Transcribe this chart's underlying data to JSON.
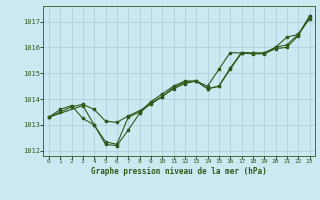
{
  "title": "Graphe pression niveau de la mer (hPa)",
  "bg_color": "#cce8f0",
  "grid_color": "#aaccdd",
  "line_color": "#2d5a1b",
  "xlim": [
    -0.5,
    23.5
  ],
  "ylim": [
    1011.8,
    1017.6
  ],
  "yticks": [
    1012,
    1013,
    1014,
    1015,
    1016,
    1017
  ],
  "xticks": [
    0,
    1,
    2,
    3,
    4,
    5,
    6,
    7,
    8,
    9,
    10,
    11,
    12,
    13,
    14,
    15,
    16,
    17,
    18,
    19,
    20,
    21,
    22,
    23
  ],
  "series1": [
    [
      0,
      1013.3
    ],
    [
      1,
      1013.6
    ],
    [
      2,
      1013.75
    ],
    [
      3,
      1013.25
    ],
    [
      4,
      1013.0
    ],
    [
      5,
      1012.35
    ],
    [
      6,
      1012.25
    ],
    [
      7,
      1013.3
    ],
    [
      8,
      1013.5
    ],
    [
      9,
      1013.9
    ],
    [
      10,
      1014.2
    ],
    [
      11,
      1014.5
    ],
    [
      12,
      1014.7
    ],
    [
      13,
      1014.7
    ],
    [
      14,
      1014.4
    ],
    [
      15,
      1014.5
    ],
    [
      16,
      1015.2
    ],
    [
      17,
      1015.8
    ],
    [
      18,
      1015.78
    ],
    [
      19,
      1015.78
    ],
    [
      20,
      1016.0
    ],
    [
      21,
      1016.4
    ],
    [
      22,
      1016.5
    ],
    [
      23,
      1017.1
    ]
  ],
  "series2": [
    [
      0,
      1013.3
    ],
    [
      1,
      1013.5
    ],
    [
      2,
      1013.7
    ],
    [
      3,
      1013.8
    ],
    [
      4,
      1013.6
    ],
    [
      5,
      1013.15
    ],
    [
      6,
      1013.1
    ],
    [
      7,
      1013.35
    ],
    [
      8,
      1013.55
    ],
    [
      9,
      1013.8
    ],
    [
      10,
      1014.1
    ],
    [
      11,
      1014.4
    ],
    [
      12,
      1014.6
    ],
    [
      13,
      1014.7
    ],
    [
      14,
      1014.5
    ],
    [
      15,
      1015.15
    ],
    [
      16,
      1015.8
    ],
    [
      17,
      1015.78
    ],
    [
      18,
      1015.78
    ],
    [
      19,
      1015.78
    ],
    [
      20,
      1016.0
    ],
    [
      21,
      1016.1
    ],
    [
      22,
      1016.5
    ],
    [
      23,
      1017.2
    ]
  ],
  "series3": [
    [
      0,
      1013.3
    ],
    [
      3,
      1013.75
    ],
    [
      4,
      1013.0
    ],
    [
      5,
      1012.25
    ],
    [
      6,
      1012.2
    ],
    [
      7,
      1012.8
    ],
    [
      8,
      1013.45
    ],
    [
      9,
      1013.85
    ],
    [
      10,
      1014.1
    ],
    [
      11,
      1014.45
    ],
    [
      12,
      1014.65
    ],
    [
      13,
      1014.7
    ],
    [
      14,
      1014.4
    ],
    [
      15,
      1014.5
    ],
    [
      16,
      1015.15
    ],
    [
      17,
      1015.78
    ],
    [
      18,
      1015.75
    ],
    [
      19,
      1015.75
    ],
    [
      20,
      1015.95
    ],
    [
      21,
      1016.0
    ],
    [
      22,
      1016.45
    ],
    [
      23,
      1017.2
    ]
  ]
}
